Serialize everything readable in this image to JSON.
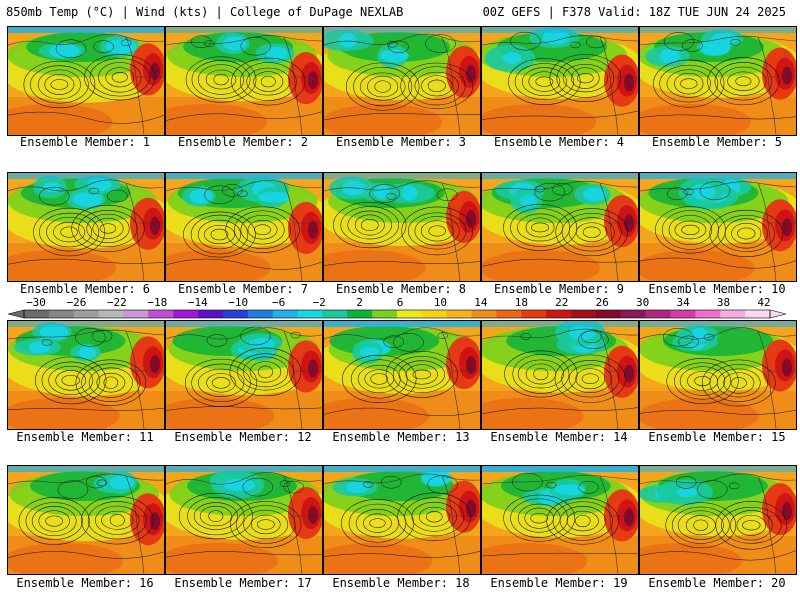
{
  "header": {
    "left": "850mb Temp (°C) | Wind (kts) | College of DuPage NEXLAB",
    "right": "00Z GEFS | F378 Valid: 18Z TUE JUN 24 2025"
  },
  "colorbar": {
    "tick_labels": [
      "−30",
      "−26",
      "−22",
      "−18",
      "−14",
      "−10",
      "−6",
      "−2",
      "2",
      "6",
      "10",
      "14",
      "18",
      "22",
      "26",
      "30",
      "34",
      "38",
      "42"
    ],
    "colors": [
      "#6b6b6b",
      "#868686",
      "#9e9e9e",
      "#b8b8b8",
      "#c996d6",
      "#c04ed8",
      "#a316d3",
      "#5a14c8",
      "#2a3fd6",
      "#1f7ee0",
      "#1fb2ea",
      "#17d6e6",
      "#19c9a0",
      "#10b23a",
      "#7bd01c",
      "#e8e81a",
      "#f5d21a",
      "#f5b31a",
      "#f08c18",
      "#ea6716",
      "#e53a14",
      "#cf1414",
      "#a30f1c",
      "#830a28",
      "#8a1a5a",
      "#b0287d",
      "#d63ca8",
      "#ef6ec8",
      "#f6aee0",
      "#fbd8ef"
    ]
  },
  "panels": [
    {
      "label": "Ensemble Member: 1"
    },
    {
      "label": "Ensemble Member: 2"
    },
    {
      "label": "Ensemble Member: 3"
    },
    {
      "label": "Ensemble Member: 4"
    },
    {
      "label": "Ensemble Member: 5"
    },
    {
      "label": "Ensemble Member: 6"
    },
    {
      "label": "Ensemble Member: 7"
    },
    {
      "label": "Ensemble Member: 8"
    },
    {
      "label": "Ensemble Member: 9"
    },
    {
      "label": "Ensemble Member: 10"
    },
    {
      "label": "Ensemble Member: 11"
    },
    {
      "label": "Ensemble Member: 12"
    },
    {
      "label": "Ensemble Member: 13"
    },
    {
      "label": "Ensemble Member: 14"
    },
    {
      "label": "Ensemble Member: 15"
    },
    {
      "label": "Ensemble Member: 16"
    },
    {
      "label": "Ensemble Member: 17"
    },
    {
      "label": "Ensemble Member: 18"
    },
    {
      "label": "Ensemble Member: 19"
    },
    {
      "label": "Ensemble Member: 20"
    }
  ]
}
